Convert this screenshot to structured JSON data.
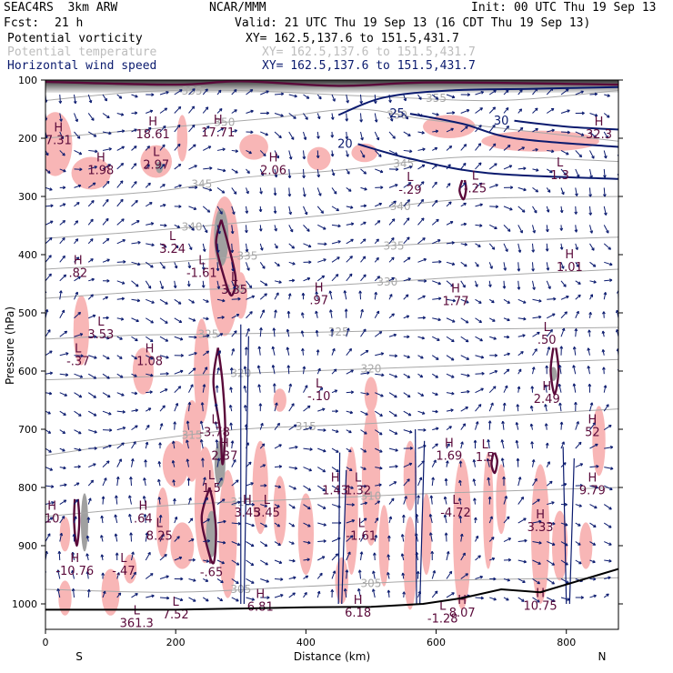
{
  "header": {
    "model": "SEAC4RS  3km ARW",
    "org": "NCAR/MMM",
    "init": "Init: 00 UTC Thu 19 Sep 13",
    "fcst_label": "Fcst:",
    "fcst_value": "21 h",
    "valid": "Valid: 21 UTC Thu 19 Sep 13 (16 CDT Thu 19 Sep 13)"
  },
  "fields": [
    {
      "name": "Potential vorticity",
      "xy": "XY= 162.5,137.6 to 151.5,431.7",
      "color": "#000000"
    },
    {
      "name": "Potential temperature",
      "xy": "XY= 162.5,137.6 to 151.5,431.7",
      "color": "#bdbdbd"
    },
    {
      "name": "Horizontal wind speed",
      "xy": "XY= 162.5,137.6 to 151.5,431.7",
      "color": "#0a1a6e"
    }
  ],
  "colors": {
    "pv_fill_light": "#f8b6b6",
    "pv_fill_dark": "#a0a0a0",
    "pv_contour": "#5a0a3a",
    "theta": "#a8a8a8",
    "wind_contour": "#0a1a6e",
    "wind_vector": "#0a1a6e",
    "terrain": "#000000"
  },
  "chart_data": {
    "type": "cross-section",
    "xlabel": "Distance (km)",
    "ylabel": "Pressure (hPa)",
    "xlim": [
      0,
      880
    ],
    "ylim": [
      1000,
      100
    ],
    "x_ticks": [
      0,
      200,
      400,
      600,
      800
    ],
    "y_ticks": [
      100,
      200,
      300,
      400,
      500,
      600,
      700,
      800,
      900,
      1000
    ],
    "x_endpoints": {
      "left": "S",
      "right": "N"
    },
    "theta_contours": [
      {
        "value": 305,
        "label": "305",
        "points": [
          [
            0,
            975
          ],
          [
            200,
            980
          ],
          [
            400,
            970
          ],
          [
            600,
            960
          ],
          [
            880,
            955
          ]
        ]
      },
      {
        "value": 310,
        "label": "310",
        "points": [
          [
            0,
            850
          ],
          [
            200,
            830
          ],
          [
            400,
            820
          ],
          [
            600,
            810
          ],
          [
            880,
            800
          ]
        ]
      },
      {
        "value": 315,
        "label": "315",
        "points": [
          [
            0,
            745
          ],
          [
            150,
            720
          ],
          [
            300,
            700
          ],
          [
            500,
            690
          ],
          [
            880,
            665
          ]
        ]
      },
      {
        "value": 320,
        "label": "320",
        "points": [
          [
            0,
            615
          ],
          [
            200,
            608
          ],
          [
            400,
            600
          ],
          [
            600,
            592
          ],
          [
            880,
            580
          ]
        ]
      },
      {
        "value": 325,
        "label": "325",
        "points": [
          [
            0,
            545
          ],
          [
            150,
            538
          ],
          [
            350,
            535
          ],
          [
            550,
            530
          ],
          [
            880,
            525
          ]
        ]
      },
      {
        "value": 330,
        "label": "330",
        "points": [
          [
            0,
            475
          ],
          [
            180,
            462
          ],
          [
            400,
            455
          ],
          [
            650,
            438
          ],
          [
            880,
            425
          ]
        ]
      },
      {
        "value": 335,
        "label": "335",
        "points": [
          [
            0,
            425
          ],
          [
            200,
            412
          ],
          [
            420,
            392
          ],
          [
            650,
            378
          ],
          [
            880,
            370
          ]
        ]
      },
      {
        "value": 340,
        "label": "340",
        "points": [
          [
            0,
            372
          ],
          [
            150,
            360
          ],
          [
            300,
            345
          ],
          [
            450,
            330
          ],
          [
            640,
            305
          ],
          [
            880,
            300
          ]
        ]
      },
      {
        "value": 345,
        "label": "345",
        "points": [
          [
            0,
            305
          ],
          [
            180,
            290
          ],
          [
            300,
            268
          ],
          [
            450,
            255
          ],
          [
            650,
            232
          ],
          [
            880,
            240
          ]
        ]
      },
      {
        "value": 350,
        "label": "350",
        "points": [
          [
            0,
            200
          ],
          [
            200,
            180
          ],
          [
            350,
            165
          ],
          [
            480,
            150
          ],
          [
            600,
            170
          ],
          [
            880,
            205
          ]
        ]
      },
      {
        "value": 355,
        "label": "355",
        "points": [
          [
            0,
            135
          ],
          [
            150,
            120
          ],
          [
            300,
            118
          ],
          [
            500,
            128
          ],
          [
            700,
            135
          ],
          [
            880,
            118
          ]
        ]
      }
    ],
    "wind_contours": [
      {
        "value": 20,
        "label": "20",
        "points": [
          [
            480,
            210
          ],
          [
            560,
            235
          ],
          [
            680,
            260
          ],
          [
            880,
            270
          ]
        ]
      },
      {
        "value": 25,
        "label": "25",
        "points": [
          [
            560,
            158
          ],
          [
            640,
            175
          ],
          [
            720,
            200
          ],
          [
            880,
            215
          ]
        ]
      },
      {
        "value": 30,
        "label": "30",
        "points": [
          [
            720,
            170
          ],
          [
            800,
            180
          ],
          [
            880,
            185
          ]
        ]
      }
    ],
    "extrema": [
      {
        "type": "H",
        "value": "7.31",
        "x": 20,
        "p": 210
      },
      {
        "type": "H",
        "value": "1.98",
        "x": 85,
        "p": 262
      },
      {
        "type": "H",
        "value": "18.61",
        "x": 165,
        "p": 200
      },
      {
        "type": "L",
        "value": "2.97",
        "x": 170,
        "p": 252
      },
      {
        "type": "H",
        "value": "17.71",
        "x": 265,
        "p": 197
      },
      {
        "type": "H",
        "value": "2.06",
        "x": 350,
        "p": 262
      },
      {
        "type": "L",
        "value": "-.29",
        "x": 560,
        "p": 295
      },
      {
        "type": "L",
        "value": "-.25",
        "x": 660,
        "p": 293
      },
      {
        "type": "H",
        "value": "32.3",
        "x": 850,
        "p": 200
      },
      {
        "type": "L",
        "value": "1.3",
        "x": 790,
        "p": 270
      },
      {
        "type": "L",
        "value": "3.24",
        "x": 195,
        "p": 397
      },
      {
        "type": "L",
        "value": "-1.61",
        "x": 240,
        "p": 438
      },
      {
        "type": "H",
        "value": ".82",
        "x": 50,
        "p": 438
      },
      {
        "type": "L",
        "value": "3.35",
        "x": 290,
        "p": 467
      },
      {
        "type": "H",
        "value": ".97",
        "x": 420,
        "p": 485
      },
      {
        "type": "H",
        "value": "1.77",
        "x": 630,
        "p": 487
      },
      {
        "type": "H",
        "value": "1.01",
        "x": 805,
        "p": 428
      },
      {
        "type": "L",
        "value": "3.53",
        "x": 85,
        "p": 544
      },
      {
        "type": "L",
        "value": "-.37",
        "x": 50,
        "p": 590
      },
      {
        "type": "H",
        "value": "1.08",
        "x": 160,
        "p": 590
      },
      {
        "type": "L",
        "value": ".50",
        "x": 770,
        "p": 553
      },
      {
        "type": "L",
        "value": "-.10",
        "x": 420,
        "p": 650
      },
      {
        "type": "H",
        "value": "2.49",
        "x": 770,
        "p": 655
      },
      {
        "type": "L",
        "value": "-3.78",
        "x": 260,
        "p": 712
      },
      {
        "type": "H",
        "value": "2.37",
        "x": 275,
        "p": 752
      },
      {
        "type": "H",
        "value": "52",
        "x": 840,
        "p": 712
      },
      {
        "type": "H",
        "value": "1.69",
        "x": 620,
        "p": 752
      },
      {
        "type": "L",
        "value": "1.5",
        "x": 675,
        "p": 755
      },
      {
        "type": "H",
        "value": "1.43",
        "x": 445,
        "p": 812
      },
      {
        "type": "L",
        "value": "1.32",
        "x": 480,
        "p": 812
      },
      {
        "type": "H",
        "value": "9.79",
        "x": 840,
        "p": 812
      },
      {
        "type": "L",
        "value": "1.5",
        "x": 255,
        "p": 808
      },
      {
        "type": "H",
        "value": "3.45",
        "x": 310,
        "p": 850
      },
      {
        "type": "L",
        "value": "3.45",
        "x": 340,
        "p": 850
      },
      {
        "type": "L",
        "value": "-4.72",
        "x": 630,
        "p": 850
      },
      {
        "type": "L",
        "value": "-1.61",
        "x": 485,
        "p": 890
      },
      {
        "type": "H",
        "value": "3.33",
        "x": 760,
        "p": 875
      },
      {
        "type": "H",
        "value": ".64",
        "x": 150,
        "p": 860
      },
      {
        "type": "L",
        "value": "8.25",
        "x": 175,
        "p": 890
      },
      {
        "type": "H",
        "value": "10",
        "x": 10,
        "p": 860
      },
      {
        "type": "H",
        "value": "-10.76",
        "x": 45,
        "p": 950
      },
      {
        "type": "L",
        "value": "-.47",
        "x": 120,
        "p": 950
      },
      {
        "type": "L",
        "value": "-.65",
        "x": 255,
        "p": 952
      },
      {
        "type": "H",
        "value": "6.81",
        "x": 330,
        "p": 1012
      },
      {
        "type": "L",
        "value": "7.52",
        "x": 200,
        "p": 1025
      },
      {
        "type": "H",
        "value": "6.18",
        "x": 480,
        "p": 1022
      },
      {
        "type": "L",
        "value": "-1.28",
        "x": 610,
        "p": 1032
      },
      {
        "type": "H",
        "value": "8.07",
        "x": 640,
        "p": 1022
      },
      {
        "type": "H",
        "value": "10.75",
        "x": 760,
        "p": 1010
      },
      {
        "type": "L",
        "value": "361.3",
        "x": 140,
        "p": 1040
      }
    ]
  }
}
